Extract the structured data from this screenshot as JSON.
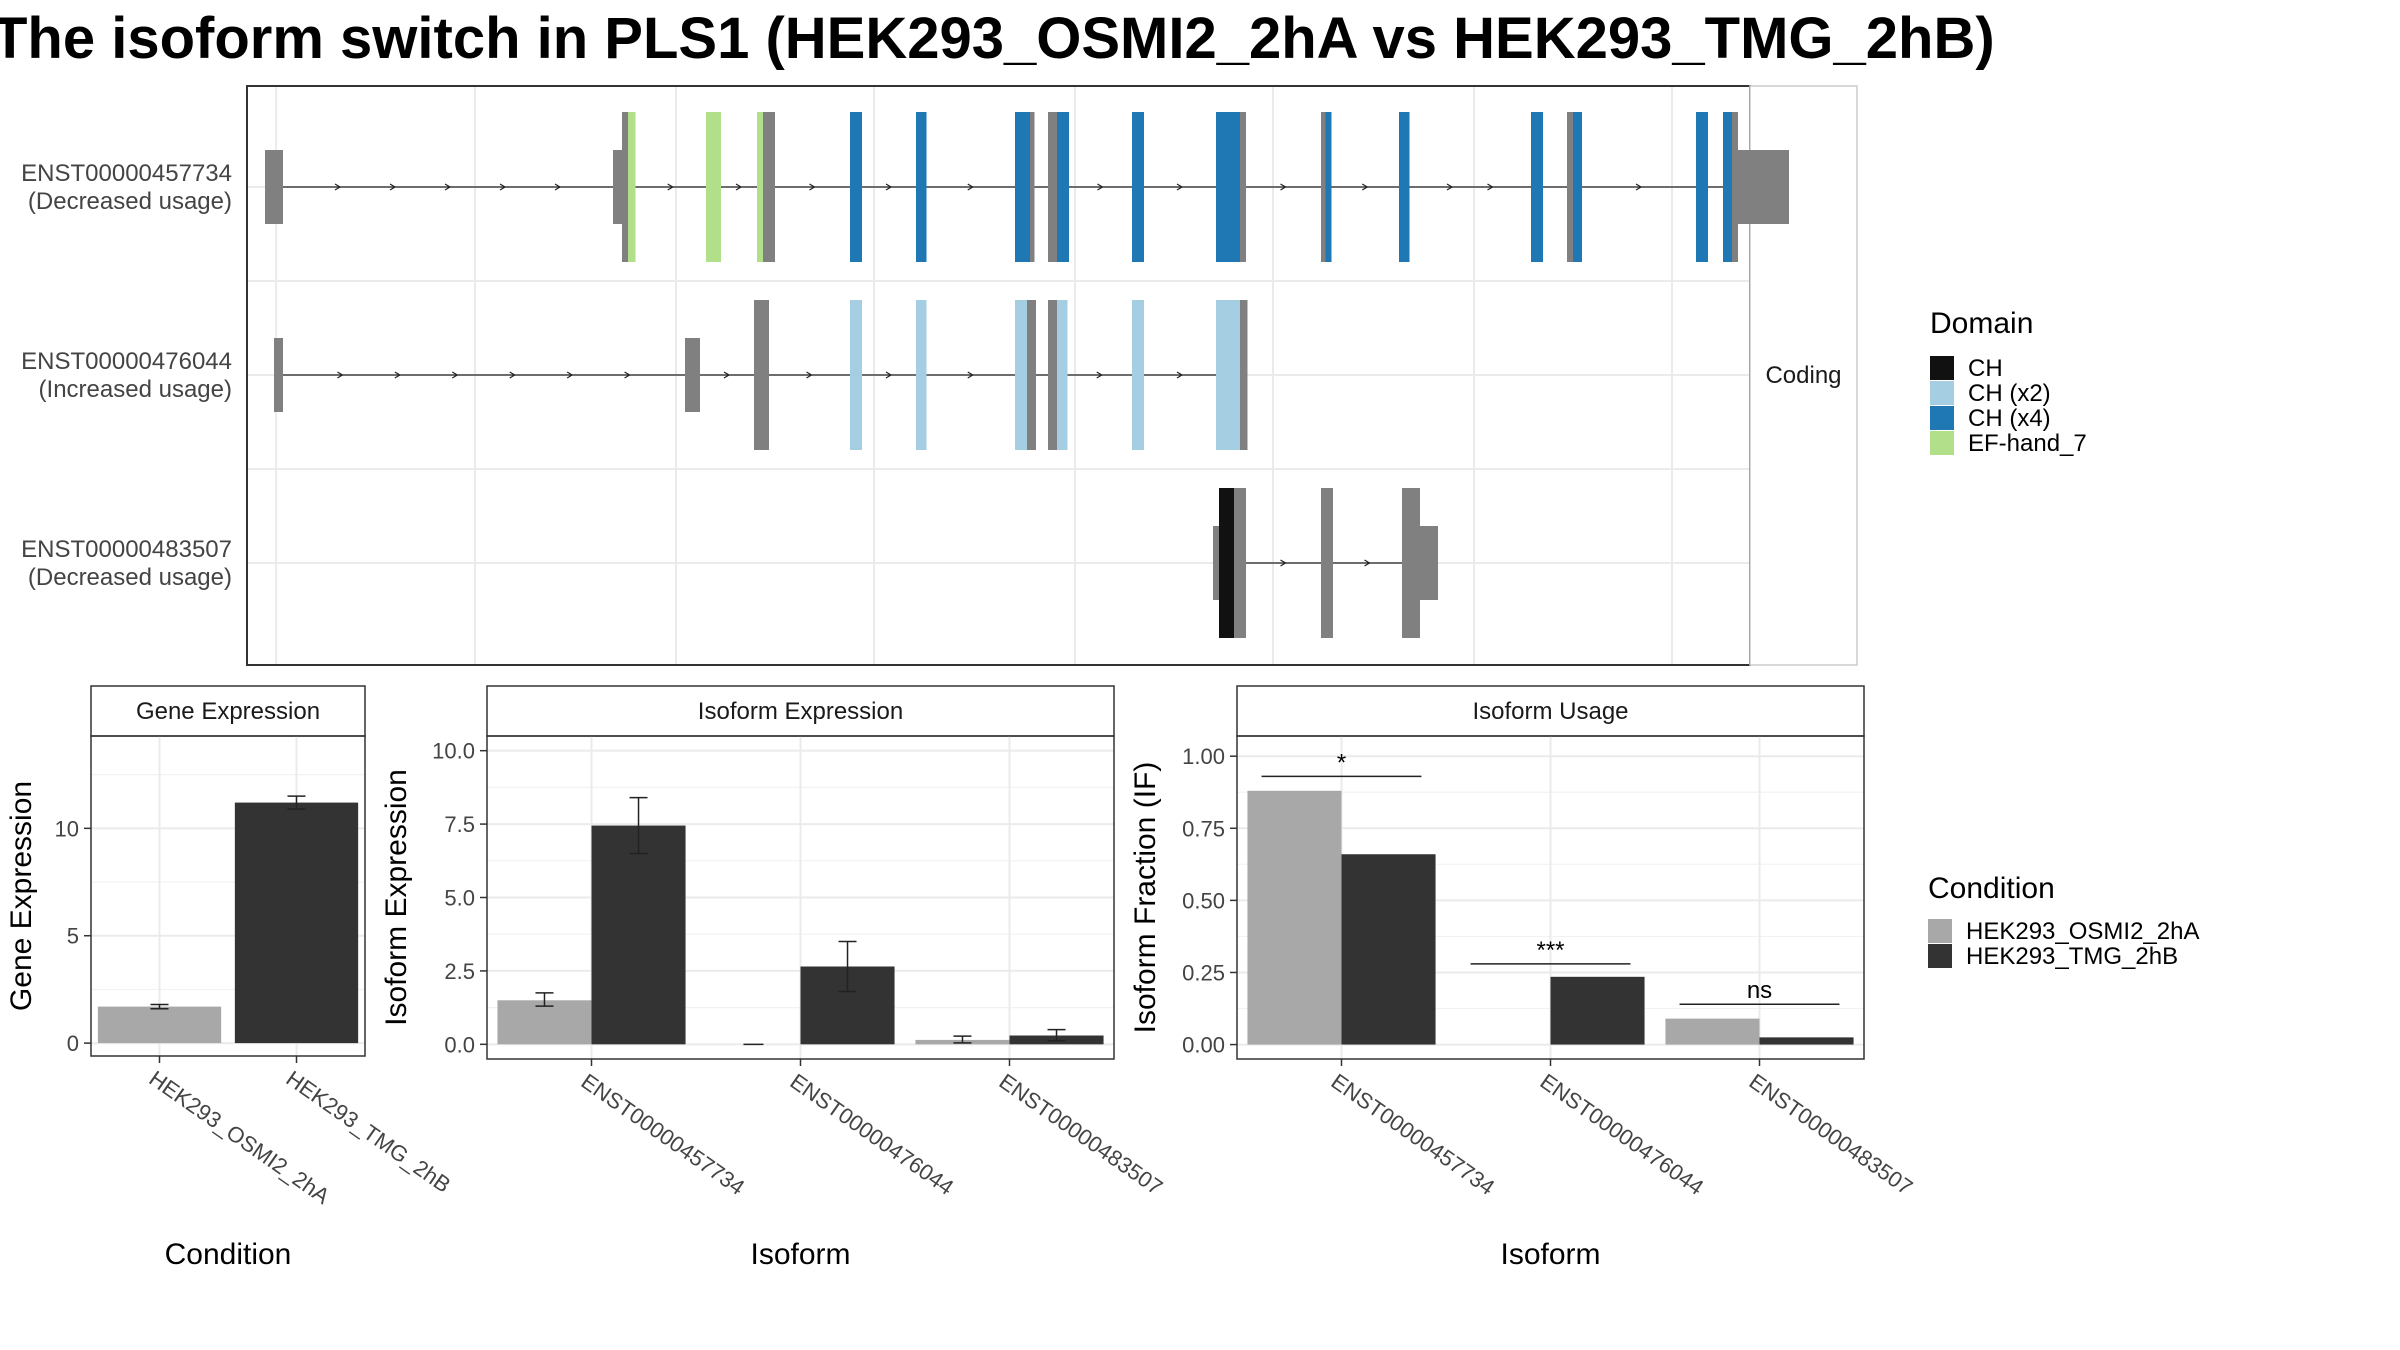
{
  "title": "The isoform switch in PLS1 (HEK293_OSMI2_2hA vs HEK293_TMG_2hB)",
  "colors": {
    "CH": "#111111",
    "CH (x2)": "#a6cee3",
    "CH (x4)": "#1f78b4",
    "EF-hand_7": "#b2df8a",
    "other": "#808080",
    "cond_A": "#a8a8a8",
    "cond_B": "#333333"
  },
  "structure": {
    "facet_label": "Coding",
    "transcripts": [
      {
        "id": "ENST00000457734",
        "usage": "(Decreased usage)",
        "exons": [
          {
            "s": 0.6,
            "e": 1.2,
            "t": "utr"
          },
          {
            "s": 12.2,
            "e": 12.5,
            "t": "utr"
          },
          {
            "s": 12.5,
            "e": 12.7,
            "t": "cds"
          },
          {
            "s": 12.7,
            "e": 12.95,
            "t": "EF-hand_7"
          },
          {
            "s": 15.3,
            "e": 15.8,
            "t": "EF-hand_7"
          },
          {
            "s": 17.0,
            "e": 17.2,
            "t": "EF-hand_7"
          },
          {
            "s": 17.2,
            "e": 17.6,
            "t": "cds"
          },
          {
            "s": 20.1,
            "e": 20.5,
            "t": "CH (x4)"
          },
          {
            "s": 22.3,
            "e": 22.65,
            "t": "CH (x4)"
          },
          {
            "s": 25.6,
            "e": 26.1,
            "t": "CH (x4)"
          },
          {
            "s": 26.1,
            "e": 26.25,
            "t": "cds"
          },
          {
            "s": 26.7,
            "e": 27.0,
            "t": "cds"
          },
          {
            "s": 27.0,
            "e": 27.4,
            "t": "CH (x4)"
          },
          {
            "s": 29.5,
            "e": 29.9,
            "t": "CH (x4)"
          },
          {
            "s": 32.3,
            "e": 33.1,
            "t": "CH (x4)"
          },
          {
            "s": 33.1,
            "e": 33.3,
            "t": "cds"
          },
          {
            "s": 35.8,
            "e": 35.95,
            "t": "cds"
          },
          {
            "s": 35.95,
            "e": 36.15,
            "t": "CH (x4)"
          },
          {
            "s": 38.4,
            "e": 38.75,
            "t": "CH (x4)"
          },
          {
            "s": 42.8,
            "e": 43.2,
            "t": "CH (x4)"
          },
          {
            "s": 44.0,
            "e": 44.2,
            "t": "cds"
          },
          {
            "s": 44.2,
            "e": 44.5,
            "t": "CH (x4)"
          },
          {
            "s": 48.3,
            "e": 48.7,
            "t": "CH (x4)"
          },
          {
            "s": 49.2,
            "e": 49.5,
            "t": "CH (x4)"
          },
          {
            "s": 49.5,
            "e": 49.7,
            "t": "cds"
          },
          {
            "s": 49.7,
            "e": 51.4,
            "t": "utr"
          }
        ]
      },
      {
        "id": "ENST00000476044",
        "usage": "(Increased usage)",
        "exons": [
          {
            "s": 0.9,
            "e": 1.2,
            "t": "utr"
          },
          {
            "s": 14.6,
            "e": 15.1,
            "t": "utr"
          },
          {
            "s": 16.9,
            "e": 17.4,
            "t": "cds"
          },
          {
            "s": 20.1,
            "e": 20.5,
            "t": "CH (x2)"
          },
          {
            "s": 22.3,
            "e": 22.65,
            "t": "CH (x2)"
          },
          {
            "s": 25.6,
            "e": 26.0,
            "t": "CH (x2)"
          },
          {
            "s": 26.0,
            "e": 26.3,
            "t": "cds"
          },
          {
            "s": 26.7,
            "e": 27.0,
            "t": "cds"
          },
          {
            "s": 27.0,
            "e": 27.35,
            "t": "CH (x2)"
          },
          {
            "s": 29.5,
            "e": 29.9,
            "t": "CH (x2)"
          },
          {
            "s": 32.3,
            "e": 33.1,
            "t": "CH (x2)"
          },
          {
            "s": 33.1,
            "e": 33.35,
            "t": "cds"
          }
        ]
      },
      {
        "id": "ENST00000483507",
        "usage": "(Decreased usage)",
        "exons": [
          {
            "s": 32.2,
            "e": 32.4,
            "t": "utr"
          },
          {
            "s": 32.4,
            "e": 32.9,
            "t": "CH"
          },
          {
            "s": 32.9,
            "e": 33.3,
            "t": "cds"
          },
          {
            "s": 35.8,
            "e": 36.2,
            "t": "cds"
          },
          {
            "s": 38.5,
            "e": 39.1,
            "t": "cds"
          },
          {
            "s": 39.1,
            "e": 39.7,
            "t": "utr"
          }
        ]
      }
    ]
  },
  "chart_data": [
    {
      "type": "bar",
      "title": "Gene Expression",
      "xlabel": "Condition",
      "ylabel": "Gene Expression",
      "categories": [
        "HEK293_OSMI2_2hA",
        "HEK293_TMG_2hB"
      ],
      "values": [
        1.7,
        11.2
      ],
      "errors": [
        [
          1.6,
          1.8
        ],
        [
          10.9,
          11.5
        ]
      ],
      "ylim": [
        -0.6,
        14.3
      ],
      "yticks": [
        0,
        5,
        10
      ]
    },
    {
      "type": "bar",
      "title": "Isoform Expression",
      "xlabel": "Isoform",
      "ylabel": "Isoform Expression",
      "categories": [
        "ENST00000457734",
        "ENST00000476044",
        "ENST00000483507"
      ],
      "series": [
        {
          "name": "HEK293_OSMI2_2hA",
          "values": [
            1.5,
            0.0,
            0.15
          ],
          "errors": [
            [
              1.3,
              1.75
            ],
            [
              0,
              0
            ],
            [
              0.05,
              0.28
            ]
          ]
        },
        {
          "name": "HEK293_TMG_2hB",
          "values": [
            7.45,
            2.65,
            0.3
          ],
          "errors": [
            [
              6.5,
              8.4
            ],
            [
              1.8,
              3.5
            ],
            [
              0.12,
              0.5
            ]
          ]
        }
      ],
      "ylim": [
        -0.5,
        10.5
      ],
      "yticks": [
        "0.0",
        "2.5",
        "5.0",
        "7.5",
        "10.0"
      ]
    },
    {
      "type": "bar",
      "title": "Isoform Usage",
      "xlabel": "Isoform",
      "ylabel": "Isoform Fraction (IF)",
      "categories": [
        "ENST00000457734",
        "ENST00000476044",
        "ENST00000483507"
      ],
      "series": [
        {
          "name": "HEK293_OSMI2_2hA",
          "values": [
            0.88,
            0.0,
            0.09
          ]
        },
        {
          "name": "HEK293_TMG_2hB",
          "values": [
            0.66,
            0.235,
            0.025
          ]
        }
      ],
      "significance": [
        "*",
        "***",
        "ns"
      ],
      "significance_level": [
        0.93,
        0.28,
        0.14
      ],
      "ylim": [
        -0.05,
        1.07
      ],
      "yticks": [
        "0.00",
        "0.25",
        "0.50",
        "0.75",
        "1.00"
      ]
    }
  ],
  "legends": {
    "domain": {
      "title": "Domain",
      "items": [
        {
          "label": "CH",
          "key": "CH"
        },
        {
          "label": "CH (x2)",
          "key": "CH (x2)"
        },
        {
          "label": "CH (x4)",
          "key": "CH (x4)"
        },
        {
          "label": "EF-hand_7",
          "key": "EF-hand_7"
        }
      ]
    },
    "condition": {
      "title": "Condition",
      "items": [
        {
          "label": "HEK293_OSMI2_2hA",
          "key": "cond_A"
        },
        {
          "label": "HEK293_TMG_2hB",
          "key": "cond_B"
        }
      ]
    }
  }
}
